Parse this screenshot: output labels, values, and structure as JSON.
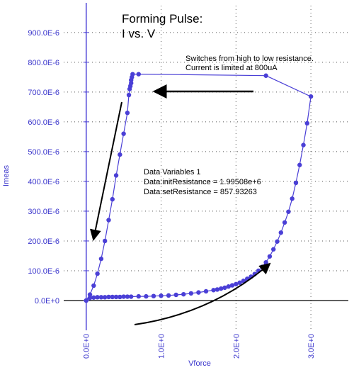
{
  "chart_data": {
    "type": "scatter",
    "title_lines": [
      "Forming Pulse:",
      "I vs. V"
    ],
    "xlabel": "Vforce",
    "ylabel": "Imeas",
    "xlim": [
      -0.3,
      3.5
    ],
    "ylim": [
      -0.0001,
      0.00099
    ],
    "x_ticks": [
      {
        "value": 0,
        "label": "0.0E+0"
      },
      {
        "value": 1,
        "label": "1.0E+0"
      },
      {
        "value": 2,
        "label": "2.0E+0"
      },
      {
        "value": 3,
        "label": "3.0E+0"
      }
    ],
    "y_ticks": [
      {
        "value": 0,
        "label": "0.0E+0"
      },
      {
        "value": 0.0001,
        "label": "100.0E-6"
      },
      {
        "value": 0.0002,
        "label": "200.0E-6"
      },
      {
        "value": 0.0003,
        "label": "300.0E-6"
      },
      {
        "value": 0.0004,
        "label": "400.0E-6"
      },
      {
        "value": 0.0005,
        "label": "500.0E-6"
      },
      {
        "value": 0.0006,
        "label": "600.0E-6"
      },
      {
        "value": 0.0007,
        "label": "700.0E-6"
      },
      {
        "value": 0.0008,
        "label": "800.0E-6"
      },
      {
        "value": 0.0009,
        "label": "900.0E-6"
      }
    ],
    "grid": true,
    "series_color": "#4a3fd6",
    "series": [
      {
        "x": [
          0.0,
          0.05,
          0.1,
          0.15,
          0.2,
          0.25,
          0.3,
          0.35,
          0.4,
          0.45,
          0.5,
          0.55,
          0.6,
          0.7,
          0.8,
          0.9,
          1.0,
          1.1,
          1.2,
          1.3,
          1.4,
          1.5,
          1.6,
          1.7,
          1.75,
          1.8,
          1.85,
          1.9,
          1.95,
          2.0,
          2.05,
          2.1,
          2.15,
          2.2,
          2.25,
          2.3,
          2.35,
          2.4,
          2.45,
          2.5,
          2.55,
          2.6,
          2.65,
          2.7,
          2.75,
          2.8,
          2.85,
          2.9,
          2.95,
          3.0,
          2.4,
          0.7,
          0.62,
          0.61,
          0.6,
          0.6,
          0.59,
          0.58,
          0.57,
          0.55,
          0.5,
          0.45,
          0.4,
          0.35,
          0.3,
          0.25,
          0.2,
          0.15,
          0.1,
          0.05,
          0.0
        ],
        "y": [
          0.0,
          9e-06,
          1e-05,
          1.1e-05,
          1.1e-05,
          1.1e-05,
          1.2e-05,
          1.2e-05,
          1.2e-05,
          1.2e-05,
          1.3e-05,
          1.3e-05,
          1.3e-05,
          1.4e-05,
          1.4e-05,
          1.5e-05,
          1.6e-05,
          1.7e-05,
          1.9e-05,
          2.1e-05,
          2.4e-05,
          2.7e-05,
          3.1e-05,
          3.5e-05,
          3.7e-05,
          4e-05,
          4.3e-05,
          4.7e-05,
          5.1e-05,
          5.5e-05,
          6e-05,
          6.6e-05,
          7.3e-05,
          8e-05,
          8.9e-05,
          0.0001,
          0.000113,
          0.000128,
          0.000148,
          0.000172,
          0.000198,
          0.000228,
          0.000262,
          0.000298,
          0.000342,
          0.000395,
          0.000455,
          0.000522,
          0.000595,
          0.000685,
          0.000755,
          0.00076,
          0.00076,
          0.00075,
          0.00074,
          0.00073,
          0.00072,
          0.00071,
          0.00069,
          0.00063,
          0.00056,
          0.00049,
          0.00042,
          0.00034,
          0.00027,
          0.0002,
          0.00014,
          9e-05,
          5e-05,
          2e-05,
          0.0
        ]
      }
    ],
    "annotations": [
      {
        "name": "resistance-switch-note",
        "lines": [
          "Switches from high to low resistance.",
          "Current is limited at 800uA"
        ]
      },
      {
        "name": "data-variables-note",
        "lines": [
          "Data Variables 1",
          "Data:initResistance = 1.99508e+6",
          "Data:setResistance = 857.93263"
        ]
      }
    ]
  }
}
